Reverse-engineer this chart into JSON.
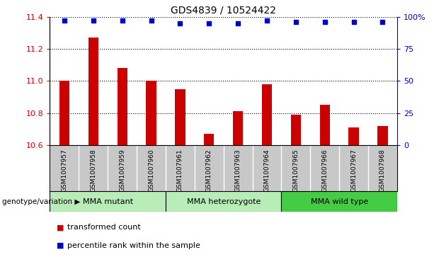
{
  "title": "GDS4839 / 10524422",
  "samples": [
    "GSM1007957",
    "GSM1007958",
    "GSM1007959",
    "GSM1007960",
    "GSM1007961",
    "GSM1007962",
    "GSM1007963",
    "GSM1007964",
    "GSM1007965",
    "GSM1007966",
    "GSM1007967",
    "GSM1007968"
  ],
  "bar_values": [
    11.0,
    11.27,
    11.08,
    11.0,
    10.95,
    10.67,
    10.81,
    10.98,
    10.79,
    10.85,
    10.71,
    10.72
  ],
  "percentile_values": [
    97,
    97,
    97,
    97,
    95,
    95,
    95,
    97,
    96,
    96,
    96,
    96
  ],
  "bar_color": "#cc0000",
  "percentile_color": "#0000cc",
  "ylim": [
    10.6,
    11.4
  ],
  "yticks_left": [
    10.6,
    10.8,
    11.0,
    11.2,
    11.4
  ],
  "yticks_right": [
    0,
    25,
    50,
    75,
    100
  ],
  "group_data": [
    {
      "label": "MMA mutant",
      "start": 0,
      "end": 4,
      "color": "#b8edb8"
    },
    {
      "label": "MMA heterozygote",
      "start": 4,
      "end": 8,
      "color": "#b8edb8"
    },
    {
      "label": "MMA wild type",
      "start": 8,
      "end": 12,
      "color": "#44cc44"
    }
  ],
  "xlabel_genotype": "genotype/variation",
  "legend_red_label": "transformed count",
  "legend_blue_label": "percentile rank within the sample",
  "bar_width": 0.35,
  "sample_area_color": "#c8c8c8",
  "title_fontsize": 10,
  "tick_fontsize": 8,
  "label_fontsize": 8
}
